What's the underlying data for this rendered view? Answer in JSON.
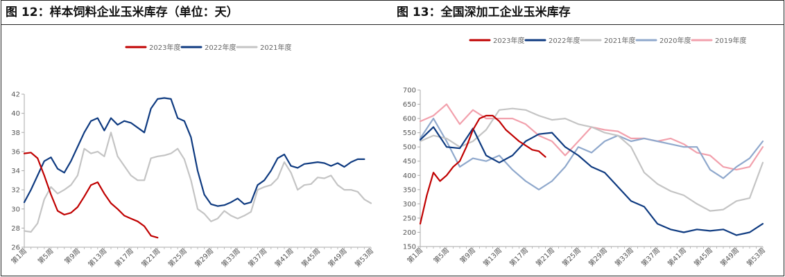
{
  "charts": [
    {
      "title": "图 12：样本饲料企业玉米库存（单位：天）",
      "legend": [
        {
          "label": "2023年度",
          "color": "#c00000"
        },
        {
          "label": "2022年度",
          "color": "#0e3a80"
        },
        {
          "label": "2021年度",
          "color": "#c4c4c4"
        }
      ]
    },
    {
      "title": "图 13：全国深加工企业玉米库存",
      "legend": [
        {
          "label": "2023年度",
          "color": "#c00000"
        },
        {
          "label": "2022年度",
          "color": "#0e3a80"
        },
        {
          "label": "2021年度",
          "color": "#c4c4c4"
        },
        {
          "label": "2020年度",
          "color": "#8fa8cc"
        },
        {
          "label": "2019年度",
          "color": "#f2a0ac"
        }
      ]
    }
  ],
  "chart_data": [
    {
      "type": "line",
      "title": "图 12：样本饲料企业玉米库存（单位：天）",
      "x_tick_labels": [
        "第1周",
        "第5周",
        "第9周",
        "第13周",
        "第17周",
        "第21周",
        "第25周",
        "第29周",
        "第33周",
        "第37周",
        "第41周",
        "第45周",
        "第49周",
        "第53周"
      ],
      "xlim": [
        1,
        53
      ],
      "ylim": [
        26,
        42
      ],
      "y_ticks": [
        26,
        28,
        30,
        32,
        34,
        36,
        38,
        40,
        42
      ],
      "grid": false,
      "legend_position": "top",
      "series": [
        {
          "name": "2023年度",
          "color": "#c00000",
          "x": [
            1,
            2,
            3,
            4,
            5,
            6,
            7,
            8,
            9,
            10,
            11,
            12,
            13,
            14,
            15,
            16,
            17,
            18,
            19,
            20,
            21
          ],
          "y": [
            35.8,
            35.9,
            35.3,
            33.5,
            31.5,
            29.8,
            29.4,
            29.6,
            30.2,
            31.3,
            32.5,
            32.8,
            31.6,
            30.6,
            30.0,
            29.3,
            29.0,
            28.7,
            28.2,
            27.2,
            27.0
          ]
        },
        {
          "name": "2022年度",
          "color": "#0e3a80",
          "x": [
            1,
            2,
            3,
            4,
            5,
            6,
            7,
            8,
            9,
            10,
            11,
            12,
            13,
            14,
            15,
            16,
            17,
            18,
            19,
            20,
            21,
            22,
            23,
            24,
            25,
            26,
            27,
            28,
            29,
            30,
            31,
            32,
            33,
            34,
            35,
            36,
            37,
            38,
            39,
            40,
            41,
            42,
            43,
            44,
            45,
            46,
            47,
            48,
            49,
            50,
            51,
            52
          ],
          "y": [
            30.7,
            32.0,
            33.5,
            35.0,
            35.4,
            34.2,
            33.8,
            35.0,
            36.5,
            38.0,
            39.2,
            39.5,
            38.2,
            39.5,
            38.8,
            39.2,
            39.0,
            38.5,
            38.0,
            40.5,
            41.5,
            41.6,
            41.5,
            39.5,
            39.2,
            37.5,
            34.0,
            31.5,
            30.5,
            30.3,
            30.4,
            30.7,
            31.1,
            30.5,
            30.7,
            32.5,
            33.0,
            34.0,
            35.3,
            35.7,
            34.5,
            34.3,
            34.7,
            34.8,
            34.9,
            34.8,
            34.5,
            34.8,
            34.4,
            34.9,
            35.2,
            35.2
          ]
        },
        {
          "name": "2021年度",
          "color": "#c4c4c4",
          "x": [
            1,
            2,
            3,
            4,
            5,
            6,
            7,
            8,
            9,
            10,
            11,
            12,
            13,
            14,
            15,
            16,
            17,
            18,
            19,
            20,
            21,
            22,
            23,
            24,
            25,
            26,
            27,
            28,
            29,
            30,
            31,
            32,
            33,
            34,
            35,
            36,
            37,
            38,
            39,
            40,
            41,
            42,
            43,
            44,
            45,
            46,
            47,
            48,
            49,
            50,
            51,
            52,
            53
          ],
          "y": [
            27.7,
            27.6,
            28.5,
            31.0,
            32.3,
            31.6,
            32.0,
            32.5,
            33.5,
            36.3,
            35.8,
            36.0,
            35.5,
            38.0,
            35.5,
            34.5,
            33.5,
            33.0,
            33.0,
            35.3,
            35.5,
            35.6,
            35.8,
            36.3,
            35.2,
            33.0,
            30.0,
            29.5,
            28.7,
            29.0,
            29.8,
            29.3,
            29.0,
            29.3,
            29.7,
            32.0,
            32.3,
            32.5,
            33.2,
            34.9,
            33.8,
            32.0,
            32.5,
            32.6,
            33.3,
            33.2,
            33.5,
            32.5,
            32.0,
            32.0,
            31.8,
            31.0,
            30.6
          ]
        }
      ]
    },
    {
      "type": "line",
      "title": "图 13：全国深加工企业玉米库存",
      "x_tick_labels": [
        "第1周",
        "第5周",
        "第9周",
        "第13周",
        "第17周",
        "第21周",
        "第25周",
        "第29周",
        "第33周",
        "第37周",
        "第41周",
        "第45周",
        "第49周",
        "第53周"
      ],
      "xlim": [
        1,
        53
      ],
      "ylim": [
        150,
        700
      ],
      "y_ticks": [
        150,
        200,
        250,
        300,
        350,
        400,
        450,
        500,
        550,
        600,
        650,
        700
      ],
      "grid": false,
      "legend_position": "top",
      "series": [
        {
          "name": "2023年度",
          "color": "#c00000",
          "x": [
            1,
            2,
            3,
            4,
            5,
            6,
            7,
            8,
            9,
            10,
            11,
            12,
            13,
            14,
            15,
            16,
            17,
            18,
            19,
            20
          ],
          "y": [
            230,
            330,
            410,
            380,
            400,
            430,
            450,
            500,
            560,
            600,
            610,
            610,
            590,
            560,
            540,
            520,
            505,
            490,
            485,
            465
          ]
        },
        {
          "name": "2022年度",
          "color": "#0e3a80",
          "x": [
            1,
            3,
            5,
            7,
            9,
            11,
            13,
            15,
            17,
            19,
            21,
            23,
            25,
            27,
            29,
            31,
            33,
            35,
            37,
            39,
            41,
            43,
            45,
            47,
            49,
            51,
            53
          ],
          "y": [
            525,
            570,
            500,
            495,
            565,
            470,
            445,
            470,
            520,
            545,
            550,
            500,
            470,
            430,
            410,
            360,
            310,
            290,
            230,
            210,
            200,
            210,
            205,
            210,
            190,
            200,
            230
          ]
        },
        {
          "name": "2021年度",
          "color": "#c4c4c4",
          "x": [
            1,
            3,
            5,
            7,
            9,
            11,
            13,
            15,
            17,
            19,
            21,
            23,
            25,
            27,
            29,
            31,
            33,
            35,
            37,
            39,
            41,
            43,
            45,
            47,
            49,
            51,
            53
          ],
          "y": [
            520,
            540,
            530,
            500,
            520,
            560,
            630,
            635,
            630,
            610,
            595,
            600,
            580,
            570,
            550,
            540,
            500,
            410,
            370,
            345,
            330,
            300,
            275,
            280,
            310,
            320,
            445
          ]
        },
        {
          "name": "2020年度",
          "color": "#8fa8cc",
          "x": [
            1,
            3,
            5,
            7,
            9,
            11,
            13,
            15,
            17,
            19,
            21,
            23,
            25,
            27,
            29,
            31,
            33,
            35,
            37,
            39,
            41,
            43,
            45,
            47,
            49,
            51,
            53
          ],
          "y": [
            530,
            600,
            520,
            430,
            460,
            450,
            470,
            420,
            380,
            350,
            380,
            430,
            500,
            480,
            520,
            540,
            520,
            530,
            520,
            510,
            500,
            500,
            420,
            390,
            430,
            460,
            520
          ]
        },
        {
          "name": "2019年度",
          "color": "#f2a0ac",
          "x": [
            1,
            3,
            5,
            7,
            9,
            11,
            13,
            15,
            17,
            19,
            21,
            23,
            25,
            27,
            29,
            31,
            33,
            35,
            37,
            39,
            41,
            43,
            45,
            47,
            49,
            51,
            53
          ],
          "y": [
            590,
            610,
            650,
            580,
            630,
            600,
            600,
            600,
            580,
            540,
            520,
            470,
            520,
            570,
            560,
            555,
            530,
            530,
            520,
            530,
            510,
            480,
            470,
            430,
            420,
            430,
            500
          ]
        }
      ]
    }
  ]
}
